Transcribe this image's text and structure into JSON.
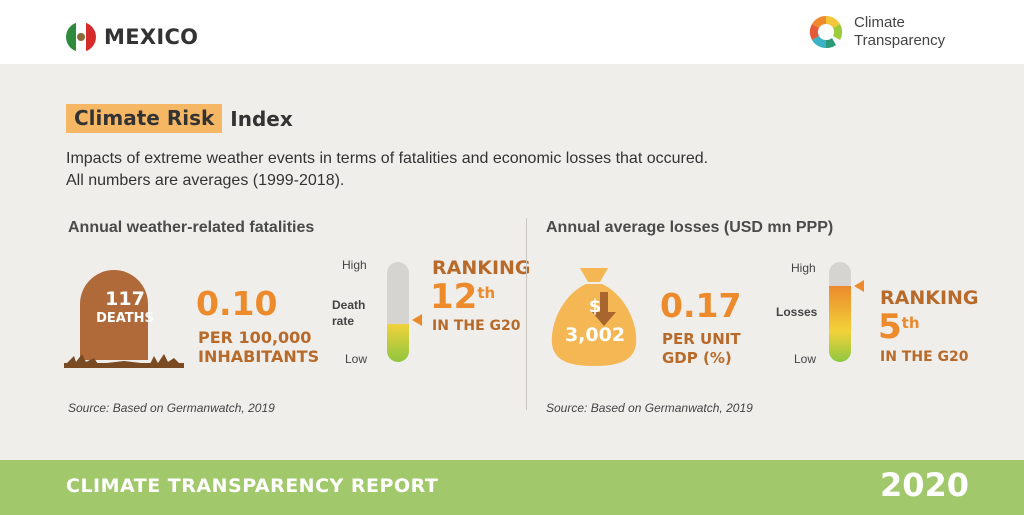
{
  "header": {
    "country": "MEXICO",
    "flag_icon": "mexico-flag-icon",
    "brand_line1": "Climate",
    "brand_line2": "Transparency",
    "brand_icon": "climate-transparency-logo-icon"
  },
  "title": {
    "highlight": "Climate Risk",
    "rest": "Index",
    "highlight_color": "#f6b765"
  },
  "description": {
    "line1": "Impacts of extreme weather events in terms of fatalities and economic losses that occured.",
    "line2": "All numbers are averages (1999-2018)."
  },
  "fatalities": {
    "section_title": "Annual weather-related fatalities",
    "deaths_value": "117",
    "deaths_label": "DEATHS",
    "rate_value": "0.10",
    "rate_unit_line1": "PER 100,000",
    "rate_unit_line2": "INHABITANTS",
    "gauge": {
      "high": "High",
      "low": "Low",
      "label_line1": "Death",
      "label_line2": "rate",
      "level": 0.38
    },
    "ranking_label": "RANKING",
    "ranking_number": "12",
    "ranking_suffix": "th",
    "ranking_scope": "IN THE G20",
    "source": "Source: Based on Germanwatch, 2019"
  },
  "losses": {
    "section_title": "Annual average losses (USD mn PPP)",
    "currency_symbol": "$",
    "losses_value": "3,002",
    "gdp_value": "0.17",
    "gdp_unit_line1": "PER UNIT",
    "gdp_unit_line2": "GDP (%)",
    "gauge": {
      "high": "High",
      "low": "Low",
      "label": "Losses",
      "level": 0.76
    },
    "ranking_label": "RANKING",
    "ranking_number": "5",
    "ranking_suffix": "th",
    "ranking_scope": "IN THE G20",
    "source": "Source: Based on Germanwatch, 2019"
  },
  "footer": {
    "report_title": "CLIMATE TRANSPARENCY REPORT",
    "year": "2020",
    "bar_color": "#a2c86c"
  },
  "colors": {
    "accent_orange": "#ec8a2c",
    "accent_brown": "#b86a2a",
    "tomb_brown": "#b06a3a",
    "bag_yellow": "#f4b754",
    "panel_bg": "#efeeeb"
  }
}
